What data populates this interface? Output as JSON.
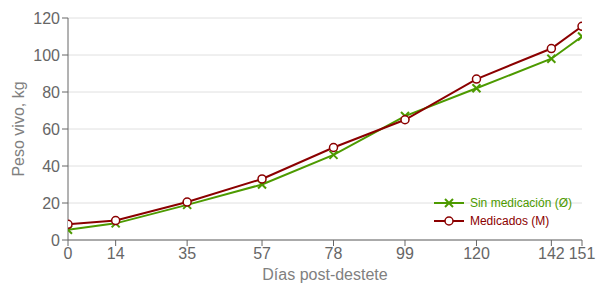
{
  "chart_data": {
    "type": "line",
    "x": [
      0,
      14,
      35,
      57,
      78,
      99,
      120,
      142,
      151
    ],
    "series": [
      {
        "name": "Sin medicación (Ø)",
        "color": "#4d9a00",
        "marker": "x",
        "values": [
          5.5,
          9.0,
          19.0,
          30.0,
          46.0,
          67.0,
          82.0,
          98.0,
          110.0
        ]
      },
      {
        "name": "Medicados (M)",
        "color": "#8b0000",
        "marker": "circle",
        "values": [
          8.5,
          10.5,
          20.5,
          33.0,
          50.0,
          65.0,
          87.0,
          103.5,
          115.5
        ]
      }
    ],
    "xlabel": "Días post-destete",
    "ylabel": "Peso vivo, kg",
    "xlim": [
      0,
      151
    ],
    "xticks": [
      0,
      14,
      35,
      57,
      78,
      99,
      120,
      142,
      151
    ],
    "ylim": [
      0,
      120
    ],
    "yticks": [
      0,
      20,
      40,
      60,
      80,
      100,
      120
    ],
    "grid": "y",
    "legend": "lower right"
  }
}
